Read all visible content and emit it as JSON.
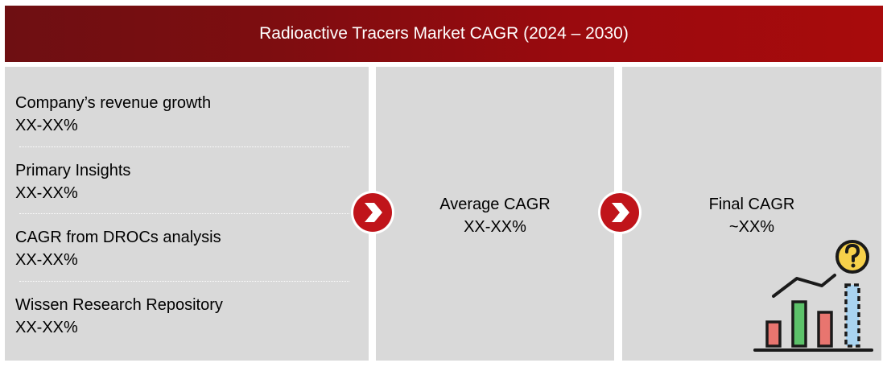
{
  "header": {
    "title": "Radioactive Tracers Market CAGR (2024 – 2030)"
  },
  "sources": [
    {
      "label": "Company’s revenue growth",
      "value": "XX-XX%"
    },
    {
      "label": "Primary Insights",
      "value": "XX-XX%"
    },
    {
      "label": "CAGR from DROCs analysis",
      "value": "XX-XX%"
    },
    {
      "label": "Wissen Research Repository",
      "value": "XX-XX%"
    }
  ],
  "average": {
    "label": "Average CAGR",
    "value": "XX-XX%"
  },
  "final": {
    "label": "Final CAGR",
    "value": "~XX%"
  },
  "icons": {
    "arrows": "chevron-right-icon",
    "illustration": "growth-chart-question-icon"
  },
  "colors": {
    "banner_dark": "#6e0f12",
    "banner_light": "#a80b0c",
    "panel": "#d9d9d9",
    "arrow_red": "#c0141a",
    "bar_red": "#e8756f",
    "bar_green": "#5cc26a",
    "bar_blue": "#a9d3f0",
    "question_yellow": "#f7d14a"
  }
}
